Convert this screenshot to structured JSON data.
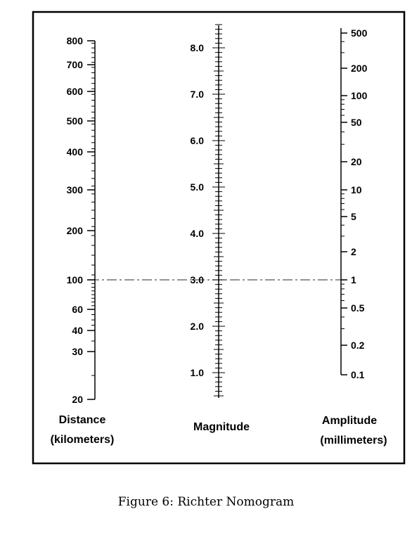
{
  "nomogram": {
    "distance": {
      "title_line1": "Distance",
      "title_line2": "(kilometers)",
      "ticks": [
        {
          "value": 800,
          "label": "800"
        },
        {
          "value": 700,
          "label": "700"
        },
        {
          "value": 600,
          "label": "600"
        },
        {
          "value": 500,
          "label": "500"
        },
        {
          "value": 400,
          "label": "400"
        },
        {
          "value": 300,
          "label": "300"
        },
        {
          "value": 200,
          "label": "200"
        },
        {
          "value": 100,
          "label": "100"
        },
        {
          "value": 60,
          "label": "60"
        },
        {
          "value": 40,
          "label": "40"
        },
        {
          "value": 30,
          "label": "30"
        },
        {
          "value": 20,
          "label": "20"
        }
      ]
    },
    "magnitude": {
      "title": "Magnitude",
      "ticks": [
        {
          "value": 8.0,
          "label": "8.0"
        },
        {
          "value": 7.0,
          "label": "7.0"
        },
        {
          "value": 6.0,
          "label": "6.0"
        },
        {
          "value": 5.0,
          "label": "5.0"
        },
        {
          "value": 4.0,
          "label": "4.0"
        },
        {
          "value": 3.0,
          "label": "3.0"
        },
        {
          "value": 2.0,
          "label": "2.0"
        },
        {
          "value": 1.0,
          "label": "1.0"
        }
      ]
    },
    "amplitude": {
      "title_line1": "Amplitude",
      "title_line2": "(millimeters)",
      "ticks": [
        {
          "value": 500,
          "label": "500"
        },
        {
          "value": 200,
          "label": "200"
        },
        {
          "value": 100,
          "label": "100"
        },
        {
          "value": 50,
          "label": "50"
        },
        {
          "value": 20,
          "label": "20"
        },
        {
          "value": 10,
          "label": "10"
        },
        {
          "value": 5,
          "label": "5"
        },
        {
          "value": 2,
          "label": "2"
        },
        {
          "value": 1,
          "label": "1"
        },
        {
          "value": 0.5,
          "label": "0.5"
        },
        {
          "value": 0.2,
          "label": "0.2"
        },
        {
          "value": 0.1,
          "label": "0.1"
        }
      ]
    },
    "example_line": {
      "distance": 100,
      "magnitude": 3.0,
      "amplitude": 1
    }
  },
  "caption": "Figure 6: Richter Nomogram"
}
